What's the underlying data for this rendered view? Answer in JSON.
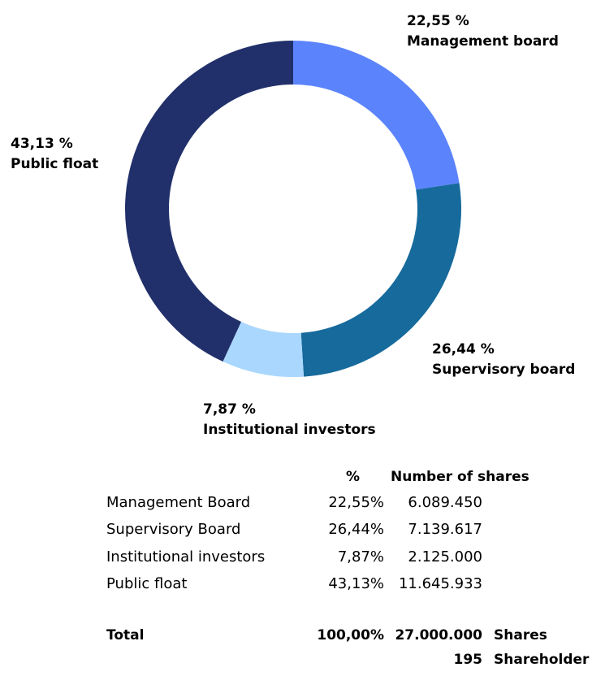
{
  "chart_data": {
    "type": "pie",
    "title": "",
    "slices": [
      {
        "label": "Management board",
        "value": 22.55,
        "display": "22,55 %",
        "color": "#5b84fc"
      },
      {
        "label": "Supervisory board",
        "value": 26.44,
        "display": "26,44 %",
        "color": "#166a9c"
      },
      {
        "label": "Institutional investors",
        "value": 7.87,
        "display": "7,87 %",
        "color": "#aad7fd"
      },
      {
        "label": "Public float",
        "value": 43.13,
        "display": "43,13 %",
        "color": "#21306a"
      }
    ],
    "hole": true
  },
  "table": {
    "headers": {
      "pct": "%",
      "shares": "Number of shares"
    },
    "rows": [
      {
        "label": "Management Board",
        "pct": "22,55%",
        "shares": "6.089.450"
      },
      {
        "label": "Supervisory Board",
        "pct": "26,44%",
        "shares": "7.139.617"
      },
      {
        "label": "Institutional investors",
        "pct": "7,87%",
        "shares": "2.125.000"
      },
      {
        "label": "Public float",
        "pct": "43,13%",
        "shares": "11.645.933"
      }
    ],
    "total": {
      "label": "Total",
      "pct": "100,00%",
      "shares": "27.000.000",
      "unit": "Shares"
    },
    "shareholders": {
      "count": "195",
      "unit": "Shareholder"
    }
  }
}
